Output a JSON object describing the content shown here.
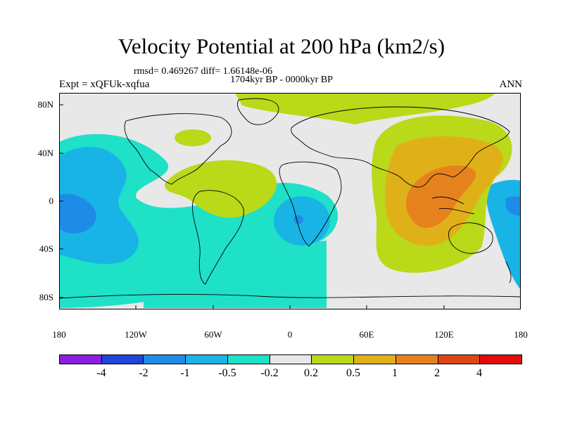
{
  "header": {
    "title": "Velocity Potential at 200 hPa (km2/s)",
    "stats": "rmsd= 0.469267 diff= 1.66148e-06",
    "period": "1704kyr BP - 0000kyr BP",
    "experiment": "Expt = xQFUk-xqfua",
    "season": "ANN"
  },
  "map": {
    "lon_range": [
      -180,
      180
    ],
    "lat_range": [
      -90,
      90
    ],
    "x_ticks": [
      "180",
      "120W",
      "60W",
      "0",
      "60E",
      "120E",
      "180"
    ],
    "y_ticks": [
      "80N",
      "40N",
      "0",
      "40S",
      "80S"
    ]
  },
  "colorbar": {
    "colors": [
      "#8c1ee0",
      "#1e46dc",
      "#1e8ce6",
      "#19b4e6",
      "#1ee1c8",
      "#e8e8e8",
      "#b9d919",
      "#e0b019",
      "#e6821e",
      "#e04614",
      "#e60a0a"
    ],
    "labels": [
      "-4",
      "-2",
      "-1",
      "-0.5",
      "-0.2",
      "0.2",
      "0.5",
      "1",
      "2",
      "4"
    ]
  },
  "palette": {
    "neutral": "#e8e8e8",
    "cyan": "#1ee1c8",
    "sky": "#19b4e6",
    "blue": "#1e8ce6",
    "lime": "#b9d919",
    "amber": "#e0b019",
    "orange": "#e6821e"
  }
}
